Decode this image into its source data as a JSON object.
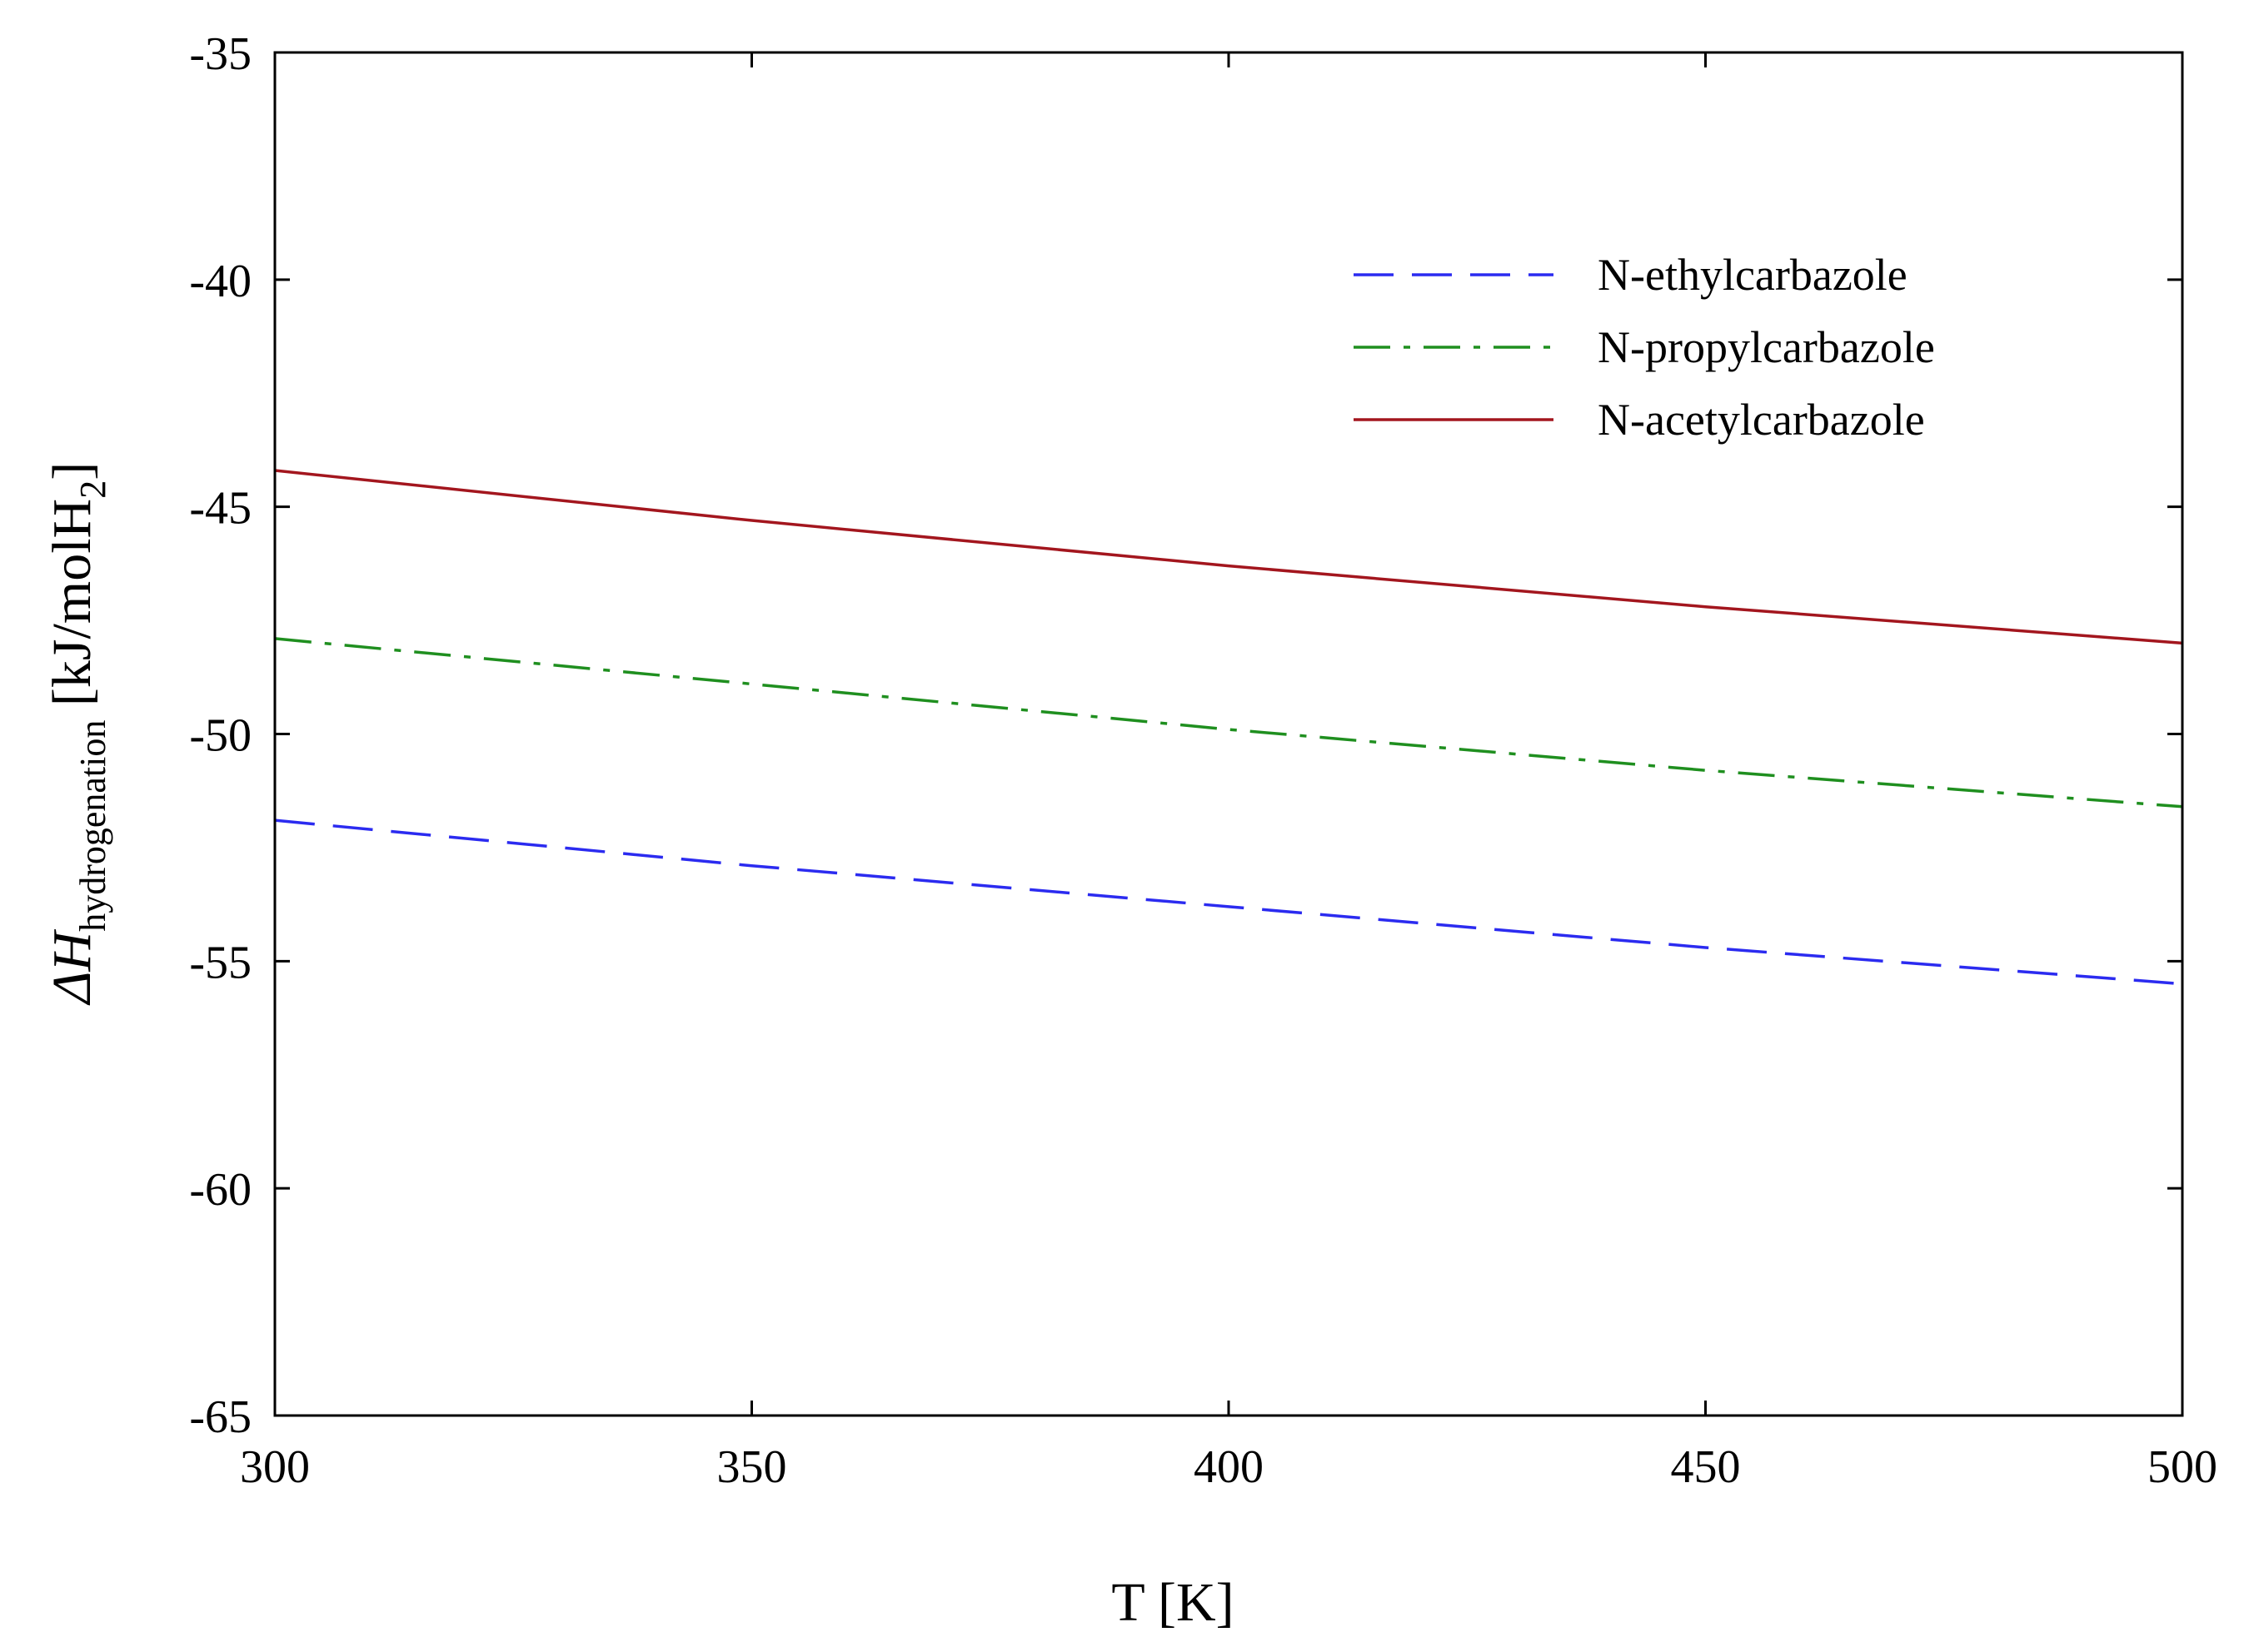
{
  "chart_data": {
    "type": "line",
    "title": "",
    "xlabel": "T [K]",
    "ylabel": {
      "symbol": "ΔH",
      "subscript": "hydrogenation",
      "unit_open": " [kJ/molH",
      "unit_sub": "2",
      "unit_close": "]"
    },
    "xlim": [
      300,
      500
    ],
    "ylim": [
      -65,
      -35
    ],
    "xticks": [
      300,
      350,
      400,
      450,
      500
    ],
    "yticks": [
      -65,
      -60,
      -55,
      -50,
      -45,
      -40,
      -35
    ],
    "grid": false,
    "legend_position": "top-right",
    "series": [
      {
        "name": "N-ethylcarbazole",
        "color": "#2b2bf0",
        "style": "dashed",
        "x": [
          300,
          350,
          400,
          450,
          500
        ],
        "y": [
          -51.9,
          -52.9,
          -53.8,
          -54.7,
          -55.5
        ]
      },
      {
        "name": "N-propylcarbazole",
        "color": "#1f8f1f",
        "style": "dashdot",
        "x": [
          300,
          350,
          400,
          450,
          500
        ],
        "y": [
          -47.9,
          -48.9,
          -49.9,
          -50.8,
          -51.6
        ]
      },
      {
        "name": "N-acetylcarbazole",
        "color": "#a3161e",
        "style": "solid",
        "x": [
          300,
          350,
          400,
          450,
          500
        ],
        "y": [
          -44.2,
          -45.3,
          -46.3,
          -47.2,
          -48.0
        ]
      }
    ]
  }
}
